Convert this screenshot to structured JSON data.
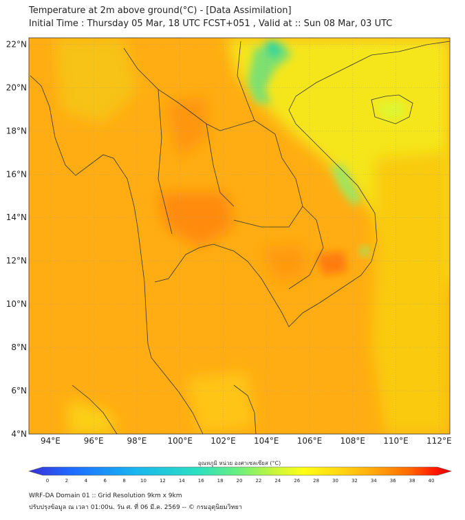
{
  "header": {
    "title_line1": "Temperature at 2m above ground(°C) - [Data Assimilation]",
    "title_line2": "Initial Time : Thursday 05 Mar, 18 UTC FCST+051 , Valid at :: Sun 08 Mar, 03 UTC"
  },
  "map": {
    "lon_range": [
      93,
      112.5
    ],
    "lat_range": [
      4,
      22.3
    ],
    "lon_ticks": [
      "94°E",
      "96°E",
      "98°E",
      "100°E",
      "102°E",
      "104°E",
      "106°E",
      "108°E",
      "110°E",
      "112°E"
    ],
    "lon_tick_values": [
      94,
      96,
      98,
      100,
      102,
      104,
      106,
      108,
      110,
      112
    ],
    "lat_ticks": [
      "4°N",
      "6°N",
      "8°N",
      "10°N",
      "12°N",
      "14°N",
      "16°N",
      "18°N",
      "20°N",
      "22°N"
    ],
    "lat_tick_values": [
      4,
      6,
      8,
      10,
      12,
      14,
      16,
      18,
      20,
      22
    ],
    "grid": true
  },
  "colorbar": {
    "title": "อุณหภูมิ หน่วย องศาเซลเซียส (°C)",
    "ticks": [
      "0",
      "2",
      "4",
      "6",
      "8",
      "10",
      "12",
      "14",
      "16",
      "18",
      "20",
      "22",
      "24",
      "26",
      "28",
      "30",
      "32",
      "34",
      "36",
      "38",
      "40"
    ],
    "range": [
      0,
      40
    ],
    "colors": [
      "#3b2fd6",
      "#1e6bff",
      "#19b5f0",
      "#2be0c0",
      "#6ef07a",
      "#c8f53a",
      "#ffff14",
      "#ffd010",
      "#ffa60a",
      "#ff6a00",
      "#ff1a00",
      "#e00000"
    ]
  },
  "footer": {
    "line1": "WRF-DA Domain 01 :: Grid Resolution 9km x 9km",
    "line2": "ปรับปรุงข้อมูล ณ เวลา 01:00น. วัน ศ. ที่ 06 มี.ค. 2569 -- © กรมอุตุนิยมวิทยา"
  }
}
